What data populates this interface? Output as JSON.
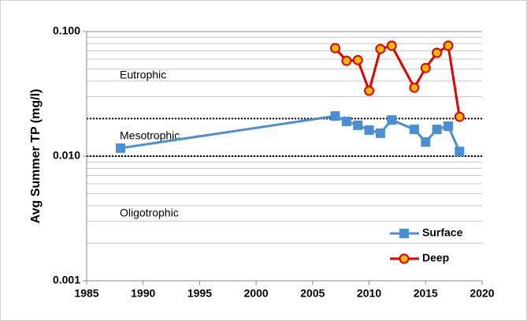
{
  "chart_data": {
    "type": "line",
    "y_label": "Avg Summer TP (mg/l)",
    "log_y": true,
    "xlim": [
      1985,
      2020
    ],
    "xticks": [
      1985,
      1990,
      1995,
      2000,
      2005,
      2010,
      2015,
      2020
    ],
    "ylim": [
      0.001,
      0.1
    ],
    "yticks": [
      {
        "value": 0.001,
        "label": "0.001"
      },
      {
        "value": 0.01,
        "label": "0.010"
      },
      {
        "value": 0.1,
        "label": "0.100"
      }
    ],
    "minor_yticks": [
      0.002,
      0.003,
      0.004,
      0.005,
      0.006,
      0.007,
      0.008,
      0.009,
      0.02,
      0.03,
      0.04,
      0.05,
      0.06,
      0.07,
      0.08,
      0.09
    ],
    "reference_lines": [
      0.01,
      0.02
    ],
    "zone_labels": [
      "Eutrophic",
      "Mesotrophic",
      "Oligotrophic"
    ],
    "series": [
      {
        "name": "Surface",
        "color": "#4a8fd4",
        "marker": "square",
        "x": [
          1988,
          2007,
          2008,
          2009,
          2010,
          2011,
          2012,
          2014,
          2015,
          2016,
          2017,
          2018
        ],
        "values": [
          0.0116,
          0.021,
          0.019,
          0.0177,
          0.0162,
          0.0153,
          0.0195,
          0.0164,
          0.013,
          0.0164,
          0.0174,
          0.0109
        ]
      },
      {
        "name": "Deep",
        "color": "#e00000",
        "marker": "circle",
        "x": [
          2007,
          2008,
          2009,
          2010,
          2011,
          2012,
          2014,
          2015,
          2016,
          2017,
          2018
        ],
        "values": [
          0.0736,
          0.0583,
          0.059,
          0.0335,
          0.0725,
          0.077,
          0.0355,
          0.051,
          0.0675,
          0.077,
          0.0207
        ]
      }
    ]
  }
}
